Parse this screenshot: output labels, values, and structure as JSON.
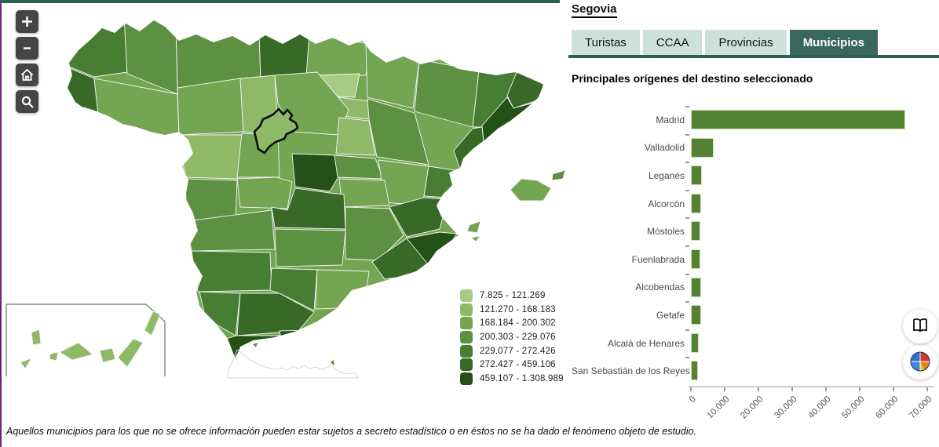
{
  "theme": {
    "accent_teal": "#2e5f54",
    "tab_inactive_bg": "#cde0da",
    "tab_active_bg": "#3a675c",
    "left_edge_purple": "#6e2077",
    "bar_green": "#548235"
  },
  "map": {
    "selected_province": "Segovia",
    "controls": [
      {
        "name": "zoom-in",
        "label": "+"
      },
      {
        "name": "zoom-out",
        "label": "-"
      },
      {
        "name": "home",
        "label": "home"
      },
      {
        "name": "zoom-box",
        "label": "magnifier"
      }
    ],
    "legend": [
      {
        "label": "7.825 - 121.269",
        "color": "#a6cb82"
      },
      {
        "label": "121.270 - 168.183",
        "color": "#8eba68"
      },
      {
        "label": "168.184 - 200.302",
        "color": "#73a553"
      },
      {
        "label": "200.303 - 229.076",
        "color": "#5d9141"
      },
      {
        "label": "229.077 - 272.426",
        "color": "#487e33"
      },
      {
        "label": "272.427 - 459.106",
        "color": "#386927"
      },
      {
        "label": "459.107 - 1.308.989",
        "color": "#245116"
      }
    ]
  },
  "panel": {
    "title": "Segovia",
    "tabs": [
      {
        "label": "Turistas",
        "active": false
      },
      {
        "label": "CCAA",
        "active": false
      },
      {
        "label": "Provincias",
        "active": false
      },
      {
        "label": "Municipios",
        "active": true
      }
    ],
    "section_title": "Principales orígenes del destino seleccionado"
  },
  "chart_data": {
    "type": "bar",
    "orientation": "horizontal",
    "title": "Principales orígenes del destino seleccionado",
    "categories": [
      "Madrid",
      "Valladolid",
      "Leganés",
      "Alcorcón",
      "Móstoles",
      "Fuenlabrada",
      "Alcobendas",
      "Getafe",
      "Alcalá de Henares",
      "San Sebastián de los Reyes"
    ],
    "values": [
      63600,
      6700,
      3300,
      3100,
      2800,
      2800,
      2950,
      3050,
      2300,
      2150
    ],
    "xlim": [
      0,
      70000
    ],
    "xtick_labels": [
      "0",
      "10.000",
      "20.000",
      "30.000",
      "40.000",
      "50.000",
      "60.000",
      "70.000"
    ],
    "bar_color": "#548235",
    "grid": false,
    "legend_position": "none"
  },
  "footnote": "Aquellos municipios para los que no se ofrece información pueden estar sujetos a secreto estadístico o en éstos no se ha dado el fenómeno objeto de estudio."
}
